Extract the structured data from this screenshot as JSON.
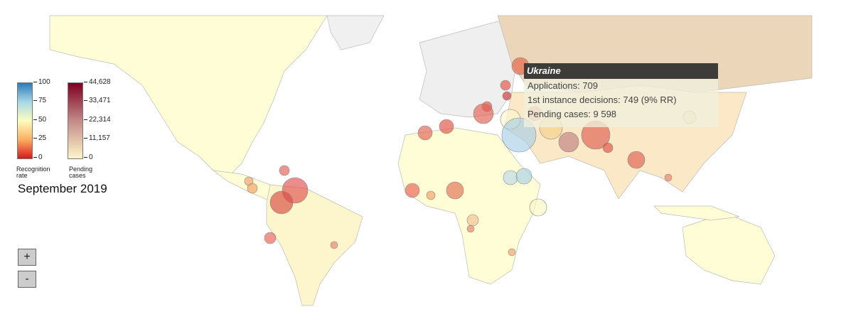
{
  "legend": {
    "recognition": {
      "ticks": [
        "100",
        "75",
        "50",
        "25",
        "0"
      ],
      "label_line1": "Recognition",
      "label_line2": "rate"
    },
    "pending": {
      "ticks": [
        "44,628",
        "33,471",
        "22,314",
        "11,157",
        "0"
      ],
      "label_line1": "Pending",
      "label_line2": "cases"
    },
    "period": "September 2019"
  },
  "zoom": {
    "in": "+",
    "out": "-"
  },
  "tooltip": {
    "country": "Ukraine",
    "applications": "Applications: 709",
    "decisions": "1st instance decisions: 749 (9% RR)",
    "pending": "Pending cases: 9 598"
  },
  "colors": {
    "land": "#fefdd6",
    "europe": "#efefef",
    "russia": "#ecd6ba",
    "border": "#b9b9b9"
  }
}
